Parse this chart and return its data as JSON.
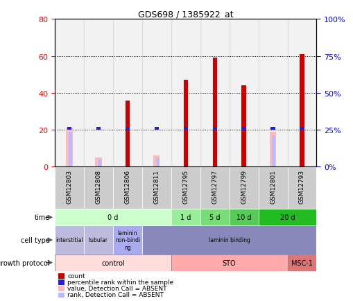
{
  "title": "GDS698 / 1385922_at",
  "samples": [
    "GSM12803",
    "GSM12808",
    "GSM12806",
    "GSM12811",
    "GSM12795",
    "GSM12797",
    "GSM12799",
    "GSM12801",
    "GSM12793"
  ],
  "count_values": [
    0,
    0,
    36,
    0,
    47,
    59,
    44,
    0,
    61
  ],
  "percentile_values": [
    26,
    26,
    26,
    26,
    26,
    26,
    26,
    26,
    26
  ],
  "absent_value_bars": [
    21,
    5,
    0,
    6,
    0,
    0,
    0,
    19,
    0
  ],
  "absent_rank_bars": [
    19,
    4,
    0,
    5,
    0,
    0,
    0,
    17,
    0
  ],
  "count_color": "#cc0000",
  "percentile_color": "#2222cc",
  "absent_value_color": "#ffbbbb",
  "absent_rank_color": "#bbbbff",
  "ylim_left": [
    0,
    80
  ],
  "ylim_right": [
    0,
    100
  ],
  "yticks_left": [
    0,
    20,
    40,
    60,
    80
  ],
  "yticks_right": [
    0,
    25,
    50,
    75,
    100
  ],
  "time_groups": [
    {
      "label": "0 d",
      "start": 0,
      "end": 4,
      "color": "#ccffcc"
    },
    {
      "label": "1 d",
      "start": 4,
      "end": 5,
      "color": "#99ee99"
    },
    {
      "label": "5 d",
      "start": 5,
      "end": 6,
      "color": "#77dd77"
    },
    {
      "label": "10 d",
      "start": 6,
      "end": 7,
      "color": "#55cc55"
    },
    {
      "label": "20 d",
      "start": 7,
      "end": 9,
      "color": "#22bb22"
    }
  ],
  "cell_type_groups": [
    {
      "label": "interstitial",
      "start": 0,
      "end": 1,
      "color": "#bbbbdd"
    },
    {
      "label": "tubular",
      "start": 1,
      "end": 2,
      "color": "#bbbbdd"
    },
    {
      "label": "laminin\nnon-bindi\nng",
      "start": 2,
      "end": 3,
      "color": "#aaaaee"
    },
    {
      "label": "laminin binding",
      "start": 3,
      "end": 9,
      "color": "#8888bb"
    }
  ],
  "growth_protocol_groups": [
    {
      "label": "control",
      "start": 0,
      "end": 4,
      "color": "#ffdddd"
    },
    {
      "label": "STO",
      "start": 4,
      "end": 8,
      "color": "#ffaaaa"
    },
    {
      "label": "MSC-1",
      "start": 8,
      "end": 9,
      "color": "#dd7777"
    }
  ],
  "legend_items": [
    {
      "color": "#cc0000",
      "label": "count"
    },
    {
      "color": "#2222cc",
      "label": "percentile rank within the sample"
    },
    {
      "color": "#ffbbbb",
      "label": "value, Detection Call = ABSENT"
    },
    {
      "color": "#bbbbff",
      "label": "rank, Detection Call = ABSENT"
    }
  ],
  "background_color": "#ffffff",
  "sample_bg_color": "#cccccc"
}
